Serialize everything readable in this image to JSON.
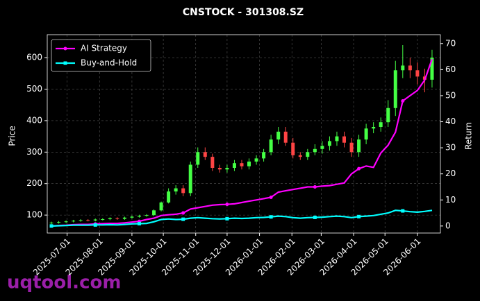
{
  "chart_data": {
    "type": "candlestick",
    "title": "CNSTOCK - 301308.SZ",
    "y_label": "Price",
    "y2_label": "Return",
    "watermark": "uqtool.com",
    "up_color": "#44ff44",
    "down_color": "#ff4444",
    "grid": true,
    "legend": "upper left",
    "x": [
      "2025-06-16",
      "2025-06-23",
      "2025-06-30",
      "2025-07-07",
      "2025-07-14",
      "2025-07-21",
      "2025-07-28",
      "2025-08-04",
      "2025-08-11",
      "2025-08-18",
      "2025-08-25",
      "2025-09-01",
      "2025-09-08",
      "2025-09-15",
      "2025-09-22",
      "2025-09-29",
      "2025-10-06",
      "2025-10-13",
      "2025-10-20",
      "2025-10-27",
      "2025-11-03",
      "2025-11-10",
      "2025-11-17",
      "2025-11-24",
      "2025-12-01",
      "2025-12-08",
      "2025-12-15",
      "2025-12-22",
      "2025-12-29",
      "2026-01-05",
      "2026-01-12",
      "2026-01-19",
      "2026-01-26",
      "2026-02-02",
      "2026-02-09",
      "2026-02-16",
      "2026-02-23",
      "2026-03-02",
      "2026-03-09",
      "2026-03-16",
      "2026-03-23",
      "2026-03-30",
      "2026-04-06",
      "2026-04-13",
      "2026-04-20",
      "2026-04-27",
      "2026-05-04",
      "2026-05-11",
      "2026-05-18",
      "2026-05-25",
      "2026-06-01",
      "2026-06-08",
      "2026-06-15"
    ],
    "open": [
      74,
      76,
      78,
      80,
      82,
      84,
      83,
      86,
      87,
      90,
      88,
      92,
      95,
      98,
      100,
      115,
      140,
      175,
      185,
      170,
      260,
      300,
      285,
      250,
      245,
      250,
      265,
      255,
      270,
      280,
      300,
      340,
      365,
      330,
      290,
      285,
      300,
      310,
      320,
      335,
      350,
      330,
      300,
      340,
      375,
      380,
      395,
      440,
      560,
      575,
      560,
      540,
      530
    ],
    "high": [
      79,
      81,
      83,
      85,
      87,
      87,
      89,
      90,
      93,
      93,
      95,
      98,
      101,
      103,
      118,
      143,
      185,
      195,
      195,
      270,
      315,
      315,
      295,
      260,
      260,
      275,
      275,
      280,
      290,
      310,
      355,
      380,
      380,
      345,
      300,
      310,
      325,
      335,
      350,
      365,
      365,
      345,
      355,
      390,
      395,
      410,
      465,
      590,
      640,
      600,
      585,
      565,
      625
    ],
    "low": [
      71,
      73,
      75,
      77,
      79,
      80,
      80,
      83,
      84,
      85,
      85,
      89,
      92,
      95,
      97,
      112,
      137,
      165,
      160,
      160,
      250,
      275,
      240,
      235,
      235,
      240,
      245,
      245,
      260,
      270,
      290,
      325,
      320,
      280,
      275,
      275,
      290,
      295,
      305,
      320,
      315,
      285,
      285,
      325,
      360,
      365,
      380,
      415,
      535,
      535,
      515,
      490,
      505
    ],
    "close": [
      76,
      78,
      80,
      82,
      84,
      83,
      86,
      87,
      90,
      88,
      92,
      95,
      98,
      100,
      115,
      140,
      175,
      185,
      170,
      260,
      300,
      285,
      250,
      245,
      250,
      265,
      255,
      270,
      280,
      300,
      340,
      365,
      330,
      290,
      285,
      300,
      310,
      320,
      335,
      350,
      330,
      300,
      340,
      375,
      380,
      395,
      440,
      560,
      575,
      560,
      540,
      530,
      600
    ],
    "series": [
      {
        "name": "AI Strategy",
        "color": "#ff00ff",
        "axis": "y2",
        "values": [
          0,
          0.2,
          0.3,
          0.5,
          0.6,
          0.6,
          0.8,
          0.9,
          1,
          1,
          1.2,
          1.5,
          1.8,
          2.5,
          3,
          4,
          4.3,
          4.5,
          5,
          6.5,
          7,
          7.5,
          8,
          8.2,
          8.3,
          8.5,
          9,
          9.5,
          10,
          10.5,
          11,
          13,
          13.5,
          14,
          14.5,
          15,
          15,
          15.3,
          15.5,
          16,
          16.5,
          20,
          22,
          23,
          22.5,
          28,
          31,
          36,
          48,
          50,
          52,
          56,
          64
        ]
      },
      {
        "name": "Buy-and-Hold",
        "color": "#00ffff",
        "axis": "y2",
        "values": [
          0,
          0.1,
          0.2,
          0.3,
          0.3,
          0.3,
          0.4,
          0.4,
          0.5,
          0.4,
          0.6,
          0.8,
          0.9,
          1,
          1.6,
          2.5,
          2.7,
          2.5,
          2.6,
          3,
          3.2,
          3,
          2.8,
          2.7,
          2.8,
          3,
          2.9,
          3,
          3.2,
          3.3,
          3.5,
          3.8,
          3.6,
          3.2,
          3,
          3.2,
          3.3,
          3.4,
          3.6,
          3.8,
          3.6,
          3.2,
          3.6,
          3.8,
          4,
          4.5,
          5,
          6,
          5.8,
          5.5,
          5.3,
          5.6,
          6
        ]
      }
    ],
    "xlim": [
      "2025-06-12",
      "2026-06-23"
    ],
    "xticks": [
      "2025-07-01",
      "2025-08-01",
      "2025-09-01",
      "2025-10-01",
      "2025-11-01",
      "2025-12-01",
      "2026-01-01",
      "2026-02-01",
      "2026-03-01",
      "2026-04-01",
      "2026-05-01",
      "2026-06-01"
    ],
    "ylim": [
      43,
      673
    ],
    "yticks": [
      100,
      200,
      300,
      400,
      500,
      600
    ],
    "y2lim": [
      -2.7,
      73.4
    ],
    "y2ticks": [
      0,
      10,
      20,
      30,
      40,
      50,
      60,
      70
    ]
  }
}
